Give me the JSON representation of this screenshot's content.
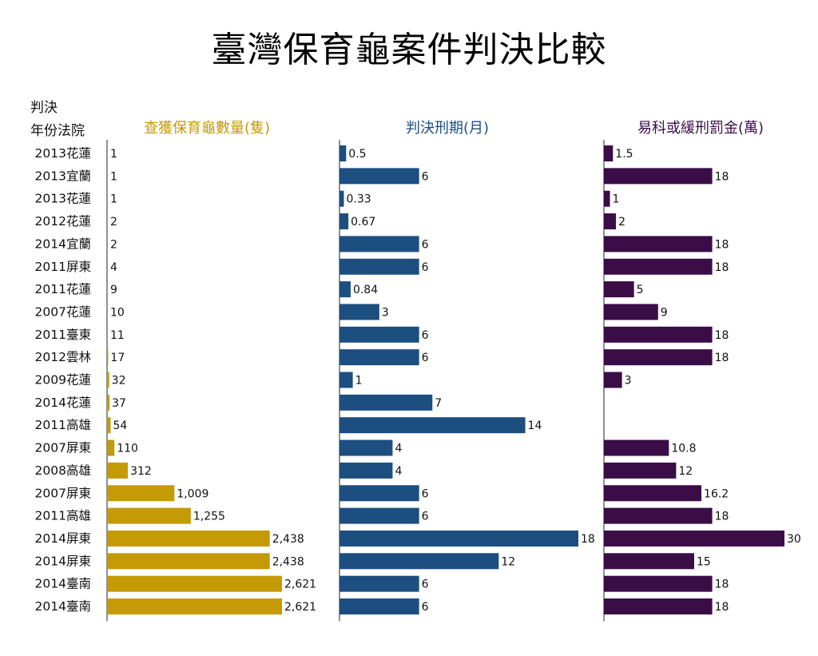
{
  "title": "臺灣保育龜案件判決比較",
  "row_header_line1": "判決",
  "row_header_line2": "年份法院",
  "chart_data": {
    "type": "bar",
    "orientation": "horizontal",
    "categories": [
      "2013花蓮",
      "2013宜蘭",
      "2013花蓮",
      "2012花蓮",
      "2014宜蘭",
      "2011屏東",
      "2011花蓮",
      "2007花蓮",
      "2011臺東",
      "2012雲林",
      "2009花蓮",
      "2014花蓮",
      "2011高雄",
      "2007屏東",
      "2008高雄",
      "2007屏東",
      "2011高雄",
      "2014屏東",
      "2014屏東",
      "2014臺南",
      "2014臺南"
    ],
    "series": [
      {
        "name": "查獲保育龜數量(隻)",
        "color": "#c49a06",
        "max": 2621,
        "values": [
          1,
          1,
          1,
          2,
          2,
          4,
          9,
          10,
          11,
          17,
          32,
          37,
          54,
          110,
          312,
          1009,
          1255,
          2438,
          2438,
          2621,
          2621
        ],
        "labels": [
          "1",
          "1",
          "1",
          "2",
          "2",
          "4",
          "9",
          "10",
          "11",
          "17",
          "32",
          "37",
          "54",
          "110",
          "312",
          "1,009",
          "1,255",
          "2,438",
          "2,438",
          "2,621",
          "2,621"
        ]
      },
      {
        "name": "判決刑期(月)",
        "color": "#1c4e80",
        "max": 18,
        "values": [
          0.5,
          6,
          0.33,
          0.67,
          6,
          6,
          0.84,
          3,
          6,
          6,
          1,
          7,
          14,
          4,
          4,
          6,
          6,
          18,
          12,
          6,
          6
        ],
        "labels": [
          "0.5",
          "6",
          "0.33",
          "0.67",
          "6",
          "6",
          "0.84",
          "3",
          "6",
          "6",
          "1",
          "7",
          "14",
          "4",
          "4",
          "6",
          "6",
          "18",
          "12",
          "6",
          "6"
        ]
      },
      {
        "name": "易科或緩刑罰金(萬)",
        "color": "#3a0d47",
        "max": 30,
        "values": [
          1.5,
          18,
          1,
          2,
          18,
          18,
          5,
          9,
          18,
          18,
          3,
          null,
          null,
          10.8,
          12,
          16.2,
          18,
          30,
          15,
          18,
          18
        ],
        "labels": [
          "1.5",
          "18",
          "1",
          "2",
          "18",
          "18",
          "5",
          "9",
          "18",
          "18",
          "3",
          "",
          "",
          "10.8",
          "12",
          "16.2",
          "18",
          "30",
          "15",
          "18",
          "18"
        ]
      }
    ]
  }
}
